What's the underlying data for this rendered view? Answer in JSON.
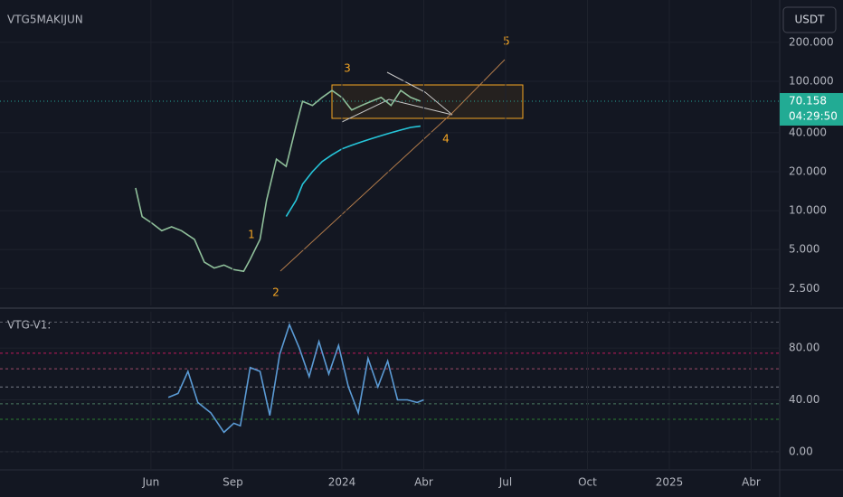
{
  "chart_data": [
    {
      "type": "line",
      "title": "VTG5MAKIJUN",
      "currency": "USDT",
      "log_scale": true,
      "grid": true,
      "xlim": [
        2022.956,
        2025.337
      ],
      "ylim": [
        1.85,
        425
      ],
      "yticks": [
        {
          "value": 2.5,
          "label": "2.500"
        },
        {
          "value": 5,
          "label": "5.000"
        },
        {
          "value": 10,
          "label": "10.000"
        },
        {
          "value": 20,
          "label": "20.000"
        },
        {
          "value": 40,
          "label": "40.000"
        },
        {
          "value": 100,
          "label": "100.000"
        },
        {
          "value": 200,
          "label": "200.000"
        }
      ],
      "x": [
        2023.37,
        2023.39,
        2023.42,
        2023.45,
        2023.48,
        2023.51,
        2023.55,
        2023.58,
        2023.61,
        2023.64,
        2023.67,
        2023.7,
        2023.72,
        2023.75,
        2023.77,
        2023.8,
        2023.83,
        2023.86,
        2023.88,
        2023.91,
        2023.94,
        2023.97,
        2024.0,
        2024.03,
        2024.06,
        2024.09,
        2024.12,
        2024.15,
        2024.18,
        2024.21,
        2024.24
      ],
      "series": [
        {
          "color": "#8fbf9a",
          "values": [
            15,
            9,
            8,
            7,
            7.5,
            7,
            6,
            4,
            3.6,
            3.8,
            3.5,
            3.4,
            4.2,
            6,
            12,
            25,
            22,
            45,
            70,
            65,
            75,
            85,
            75,
            60,
            65,
            70,
            75,
            65,
            85,
            75,
            70.158
          ]
        },
        {
          "color": "#26c6da",
          "values": [
            null,
            null,
            null,
            null,
            null,
            null,
            null,
            null,
            null,
            null,
            null,
            null,
            null,
            null,
            null,
            null,
            9,
            12,
            16,
            20,
            24,
            27,
            30,
            32,
            34,
            36,
            38,
            40,
            42,
            44,
            45
          ]
        }
      ],
      "last_price": 70.158,
      "countdown": "04:29:50",
      "wave_labels": [
        "1",
        "2",
        "3",
        "4",
        "5"
      ]
    },
    {
      "type": "line",
      "title": "VTG-V1:",
      "grid": true,
      "xlim": [
        2022.956,
        2025.337
      ],
      "ylim": [
        -14,
        108
      ],
      "yticks": [
        {
          "value": 0,
          "label": "0.00"
        },
        {
          "value": 40,
          "label": "40.00"
        },
        {
          "value": 80,
          "label": "80.00"
        }
      ],
      "levels": [
        {
          "value": 100,
          "color": "#5d606b"
        },
        {
          "value": 76,
          "color": "#c2185b"
        },
        {
          "value": 64,
          "color": "#9e4a6a"
        },
        {
          "value": 50,
          "color": "#787b86"
        },
        {
          "value": 37,
          "color": "#4a7a60"
        },
        {
          "value": 25,
          "color": "#2e7d32"
        },
        {
          "value": 0,
          "color": "#5d606b"
        }
      ],
      "xticks": [
        {
          "value": 2023.417,
          "label": "Jun"
        },
        {
          "value": 2023.667,
          "label": "Sep"
        },
        {
          "value": 2024.0,
          "label": "2024"
        },
        {
          "value": 2024.25,
          "label": "Abr"
        },
        {
          "value": 2024.5,
          "label": "Jul"
        },
        {
          "value": 2024.75,
          "label": "Oct"
        },
        {
          "value": 2025.0,
          "label": "2025"
        },
        {
          "value": 2025.25,
          "label": "Abr"
        }
      ],
      "x": [
        2023.47,
        2023.5,
        2023.53,
        2023.56,
        2023.6,
        2023.64,
        2023.67,
        2023.69,
        2023.72,
        2023.75,
        2023.78,
        2023.81,
        2023.84,
        2023.87,
        2023.9,
        2023.93,
        2023.96,
        2023.99,
        2024.02,
        2024.05,
        2024.08,
        2024.11,
        2024.14,
        2024.17,
        2024.2,
        2024.23,
        2024.25
      ],
      "series": [
        {
          "color": "#5b9bd5",
          "values": [
            42,
            45,
            62,
            38,
            30,
            15,
            22,
            20,
            65,
            62,
            28,
            75,
            98,
            80,
            58,
            85,
            60,
            82,
            50,
            30,
            72,
            50,
            70,
            40,
            40,
            38,
            40
          ]
        }
      ]
    }
  ]
}
